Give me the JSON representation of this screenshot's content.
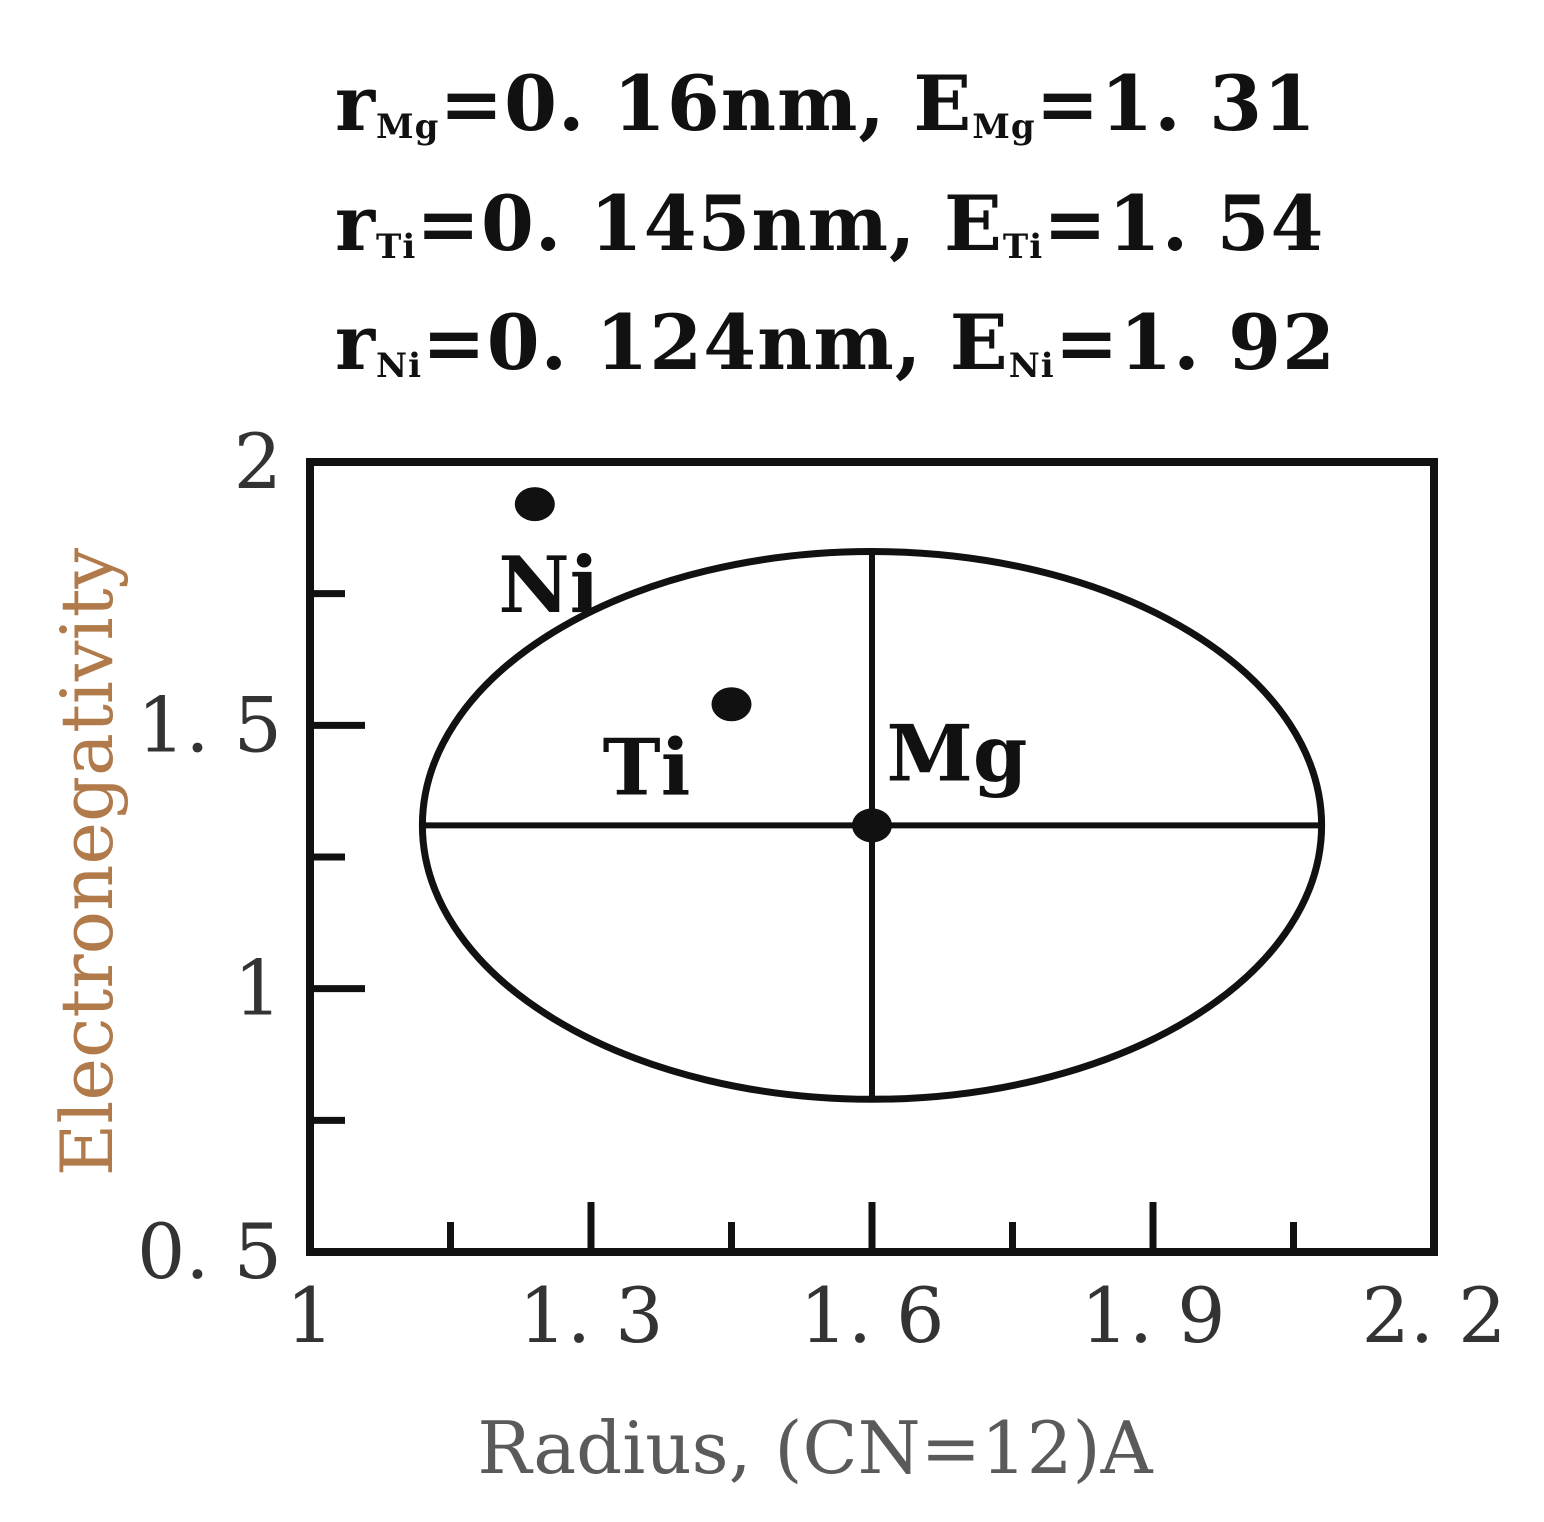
{
  "header": {
    "lines": [
      {
        "r_sym": "r",
        "r_sub": "Mg",
        "r_val": "=0. 16nm, ",
        "e_sym": "E",
        "e_sub": "Mg",
        "e_val": "=1. 31"
      },
      {
        "r_sym": "r",
        "r_sub": "Ti",
        "r_val": "=0. 145nm, ",
        "e_sym": "E",
        "e_sub": "Ti",
        "e_val": "=1. 54"
      },
      {
        "r_sym": "r",
        "r_sub": "Ni",
        "r_val": "=0. 124nm, ",
        "e_sym": "E",
        "e_sub": "Ni",
        "e_val": "=1. 92"
      }
    ]
  },
  "chart_data": {
    "type": "scatter",
    "title": "",
    "xlabel": "Radius, (CN=12)A",
    "ylabel": "Electronegativity",
    "xlim": [
      1.0,
      2.2
    ],
    "ylim": [
      0.5,
      2.0
    ],
    "x_tick_labels": [
      "1",
      "1.3",
      "1.6",
      "1.9",
      "2.2"
    ],
    "x_tick_label_text": [
      "1",
      "1. 3",
      "1. 6",
      "1. 9",
      "2. 2"
    ],
    "x_tick_values": [
      1.0,
      1.3,
      1.6,
      1.9,
      2.2
    ],
    "x_minor_ticks": [
      1.15,
      1.45,
      1.75,
      2.05
    ],
    "y_tick_labels": [
      "0.5",
      "1",
      "1.5",
      "2"
    ],
    "y_tick_label_text": [
      "0. 5",
      "1",
      "1. 5",
      "2"
    ],
    "y_tick_values": [
      0.5,
      1.0,
      1.5,
      2.0
    ],
    "y_minor_ticks": [
      0.75,
      1.25,
      1.75
    ],
    "grid": false,
    "points": [
      {
        "label": "Ni",
        "x": 1.24,
        "y": 1.92
      },
      {
        "label": "Ti",
        "x": 1.45,
        "y": 1.54
      },
      {
        "label": "Mg",
        "x": 1.6,
        "y": 1.31
      }
    ],
    "ellipse": {
      "center_x": 1.6,
      "center_y": 1.31,
      "x_min": 1.12,
      "x_max": 2.08,
      "y_min": 0.79,
      "y_max": 1.83
    }
  }
}
